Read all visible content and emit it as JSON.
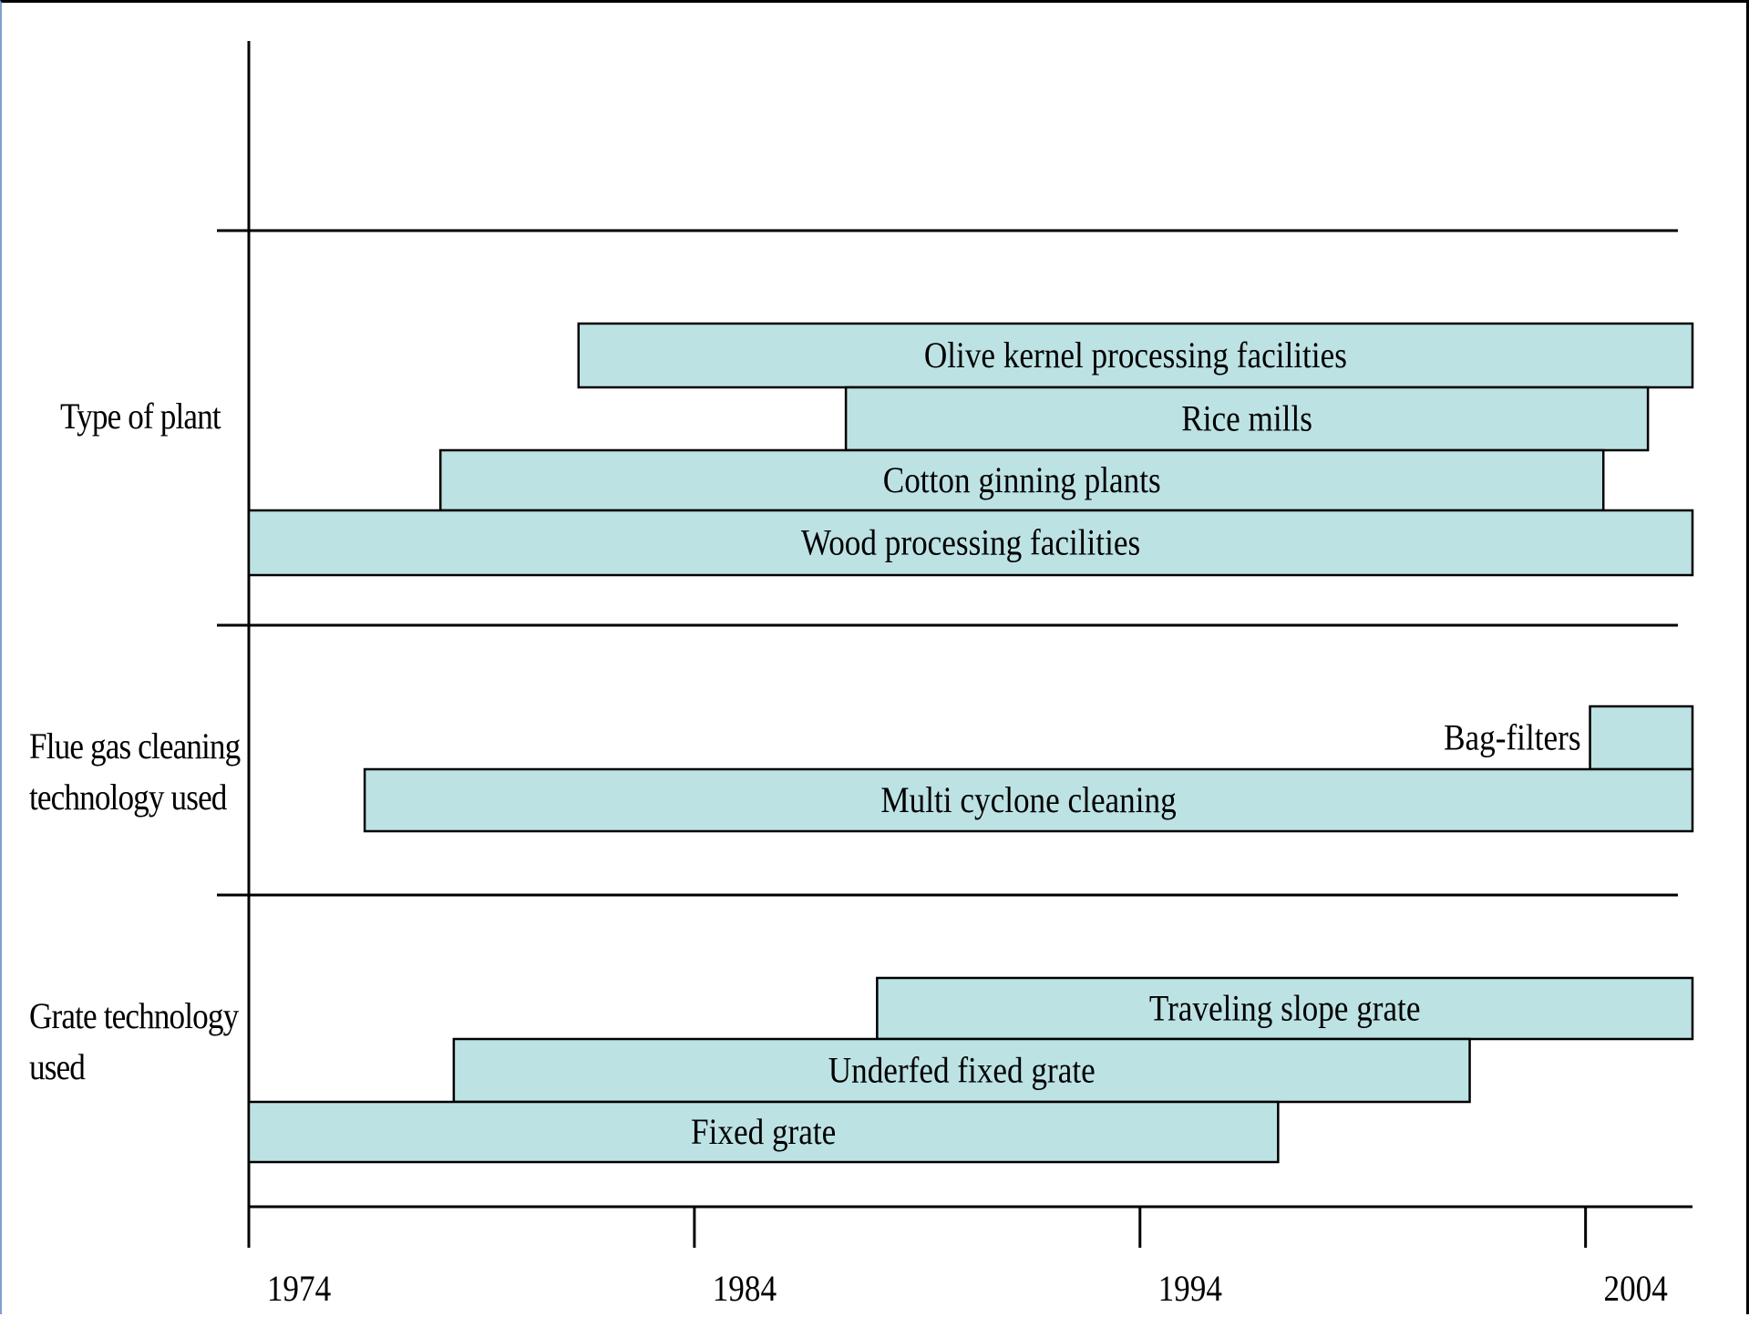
{
  "chart_data": {
    "type": "bar",
    "subtype": "gantt-timeline",
    "title": "",
    "xlabel": "",
    "ylabel": "",
    "x_ticks": [
      1974,
      1984,
      1994,
      2004
    ],
    "xlim": [
      1974,
      2006.4
    ],
    "grid": false,
    "colors": {
      "bar_fill": "#bde2e4",
      "bar_stroke": "#000000",
      "axis": "#000000"
    },
    "groups": [
      {
        "label_lines": [
          "Type of plant"
        ],
        "bars": [
          {
            "label": "Olive kernel processing facilities",
            "start": 1981.4,
            "end": 2006.4,
            "label_align": "center"
          },
          {
            "label": "Rice mills",
            "start": 1987.4,
            "end": 2005.4,
            "label_align": "center"
          },
          {
            "label": "Cotton ginning plants",
            "start": 1978.3,
            "end": 2004.4,
            "label_align": "center"
          },
          {
            "label": "Wood processing facilities",
            "start": 1974,
            "end": 2006.4,
            "label_align": "center"
          }
        ]
      },
      {
        "label_lines": [
          "Flue gas cleaning",
          "technology used"
        ],
        "bars": [
          {
            "label": "Bag-filters",
            "start": 2004.1,
            "end": 2006.4,
            "label_align": "left-outside"
          },
          {
            "label": "Multi cyclone cleaning",
            "start": 1976.6,
            "end": 2006.4,
            "label_align": "center"
          }
        ]
      },
      {
        "label_lines": [
          "Grate technology",
          "used"
        ],
        "bars": [
          {
            "label": "Traveling slope grate",
            "start": 1988.1,
            "end": 2006.4,
            "label_align": "center"
          },
          {
            "label": "Underfed fixed grate",
            "start": 1978.6,
            "end": 2001.4,
            "label_align": "center"
          },
          {
            "label": "Fixed grate",
            "start": 1974,
            "end": 1997.1,
            "label_align": "center"
          }
        ]
      }
    ]
  }
}
